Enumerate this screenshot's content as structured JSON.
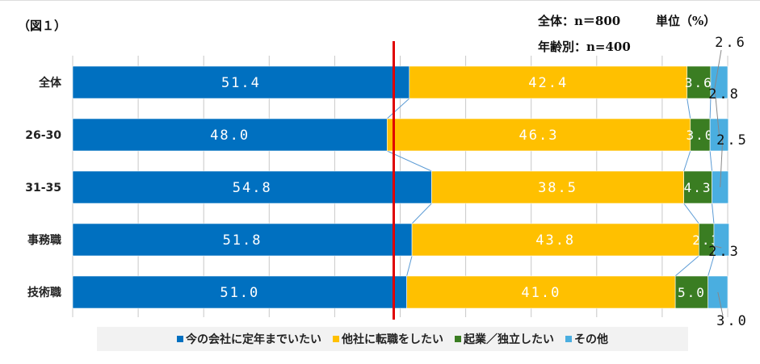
{
  "header": {
    "figure_label": "（図１）",
    "n_total": "全体：n＝800",
    "n_age": "年齢別：n=400",
    "unit": "単位（%）"
  },
  "chart_data": {
    "type": "bar",
    "stacked": true,
    "orientation": "horizontal",
    "categories": [
      "全体",
      "26-30",
      "31-35",
      "事務職",
      "技術職"
    ],
    "series": [
      {
        "name": "今の会社に定年までいたい",
        "color": "#0070c0",
        "values": [
          51.4,
          48.0,
          54.8,
          51.8,
          51.0
        ]
      },
      {
        "name": "他社に転職をしたい",
        "color": "#ffc000",
        "values": [
          42.4,
          46.3,
          38.5,
          43.8,
          41.0
        ]
      },
      {
        "name": "起業／独立したい",
        "color": "#3a7d22",
        "values": [
          3.6,
          3.0,
          4.3,
          2.3,
          5.0
        ]
      },
      {
        "name": "その他",
        "color": "#4aaee0",
        "values": [
          2.6,
          2.8,
          2.5,
          2.3,
          3.0
        ]
      }
    ],
    "xlim": [
      0,
      100
    ],
    "grid": true,
    "reference_line": {
      "value": 50,
      "color": "#e00000"
    },
    "legend_position": "bottom"
  }
}
